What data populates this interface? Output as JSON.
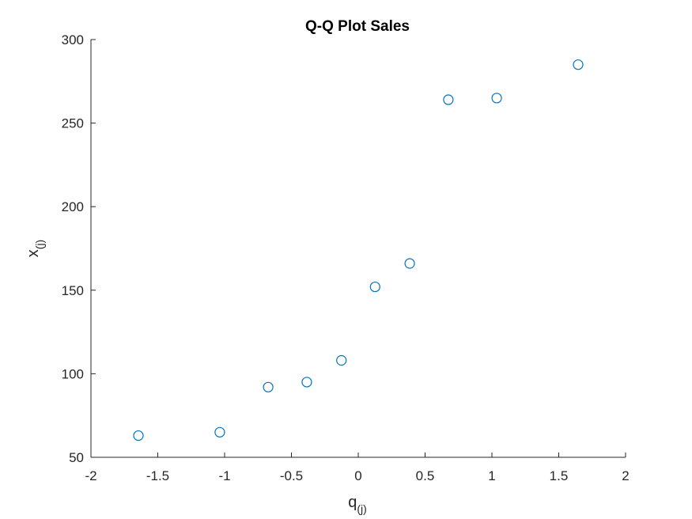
{
  "chart_data": {
    "type": "scatter",
    "title": "Q-Q Plot Sales",
    "xlabel": {
      "base": "q",
      "sub": "(j)"
    },
    "ylabel": {
      "base": "x",
      "sub": "(j)"
    },
    "xlim": [
      -2,
      2
    ],
    "ylim": [
      50,
      300
    ],
    "xticks": [
      "-2",
      "-1.5",
      "-1",
      "-0.5",
      "0",
      "0.5",
      "1",
      "1.5",
      "2"
    ],
    "yticks": [
      "50",
      "100",
      "150",
      "200",
      "250",
      "300"
    ],
    "grid": false,
    "marker": "open-circle",
    "marker_color": "#0072BD",
    "axis_color": "#262626",
    "series": [
      {
        "x": [
          -1.645,
          -1.036,
          -0.674,
          -0.385,
          -0.126,
          0.126,
          0.385,
          0.674,
          1.036,
          1.645
        ],
        "y": [
          63,
          65,
          92,
          95,
          108,
          152,
          166,
          264,
          265,
          285
        ]
      }
    ]
  }
}
